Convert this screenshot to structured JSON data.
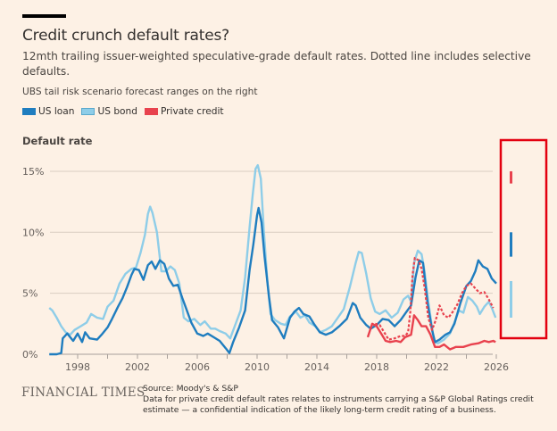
{
  "header": {
    "title": "Credit crunch default rates?",
    "subtitle": "12mth trailing issuer-weighted speculative-grade default rates. Dotted line includes selective defaults.",
    "note": "UBS tail risk scenario forecast ranges on the right"
  },
  "legend": [
    {
      "label": "US loan",
      "color": "#1f7dbf"
    },
    {
      "label": "US bond",
      "color": "#8ecde8"
    },
    {
      "label": "Private credit",
      "color": "#e8424e"
    }
  ],
  "footer": {
    "brand": "FINANCIAL TIMES",
    "source": "Source: Moody's & S&P",
    "footnote": "Data for private credit default rates relates to instruments carrying a S&P Global Ratings credit estimate — a confidential indication of the likely long-term credit rating of a business."
  },
  "chart_data": {
    "type": "line",
    "title": "Credit crunch default rates?",
    "ylabel": "Default rate",
    "xlabel": "",
    "ylim": [
      0,
      15
    ],
    "xlim": [
      1996,
      2027.5
    ],
    "yticks": [
      {
        "v": 0,
        "label": "0%"
      },
      {
        "v": 5,
        "label": "5%"
      },
      {
        "v": 10,
        "label": "10%"
      },
      {
        "v": 15,
        "label": "15%"
      }
    ],
    "xticks": [
      {
        "v": 1998,
        "label": "1998"
      },
      {
        "v": 2002,
        "label": "2002"
      },
      {
        "v": 2006,
        "label": "2006"
      },
      {
        "v": 2010,
        "label": "2010"
      },
      {
        "v": 2014,
        "label": "2014"
      },
      {
        "v": 2018,
        "label": "2018"
      },
      {
        "v": 2022,
        "label": "2022"
      },
      {
        "v": 2026,
        "label": "2026"
      }
    ],
    "minor_xticks": [
      2000,
      2004,
      2008,
      2012,
      2016,
      2020,
      2024
    ],
    "grid": true,
    "legend_position": "top-left",
    "highlight_box": {
      "label": "forecast ranges",
      "color": "#e3000f",
      "x_range": [
        2026.4,
        2027.5
      ]
    },
    "series": [
      {
        "name": "US bond",
        "color": "#8ecde8",
        "style": "solid",
        "points": [
          [
            1996.1,
            3.8
          ],
          [
            1996.3,
            3.6
          ],
          [
            1996.6,
            3.0
          ],
          [
            1996.9,
            2.3
          ],
          [
            1997.2,
            1.8
          ],
          [
            1997.5,
            1.6
          ],
          [
            1997.8,
            2.0
          ],
          [
            1998.2,
            2.3
          ],
          [
            1998.6,
            2.6
          ],
          [
            1998.9,
            3.3
          ],
          [
            1999.3,
            3.0
          ],
          [
            1999.7,
            2.9
          ],
          [
            2000.0,
            3.9
          ],
          [
            2000.4,
            4.4
          ],
          [
            2000.8,
            5.8
          ],
          [
            2001.2,
            6.6
          ],
          [
            2001.6,
            7.0
          ],
          [
            2001.9,
            7.1
          ],
          [
            2002.2,
            8.3
          ],
          [
            2002.5,
            9.8
          ],
          [
            2002.7,
            11.5
          ],
          [
            2002.85,
            12.1
          ],
          [
            2003.0,
            11.6
          ],
          [
            2003.3,
            10.0
          ],
          [
            2003.6,
            6.8
          ],
          [
            2003.9,
            6.8
          ],
          [
            2004.2,
            7.2
          ],
          [
            2004.5,
            6.9
          ],
          [
            2004.8,
            5.8
          ],
          [
            2005.1,
            3.0
          ],
          [
            2005.4,
            2.7
          ],
          [
            2005.8,
            2.9
          ],
          [
            2006.2,
            2.4
          ],
          [
            2006.5,
            2.7
          ],
          [
            2006.9,
            2.1
          ],
          [
            2007.2,
            2.1
          ],
          [
            2007.5,
            1.9
          ],
          [
            2007.9,
            1.7
          ],
          [
            2008.2,
            1.3
          ],
          [
            2008.6,
            2.6
          ],
          [
            2008.9,
            3.6
          ],
          [
            2009.2,
            6.3
          ],
          [
            2009.5,
            10.4
          ],
          [
            2009.7,
            13.0
          ],
          [
            2009.9,
            15.2
          ],
          [
            2010.05,
            15.5
          ],
          [
            2010.25,
            14.4
          ],
          [
            2010.45,
            10.2
          ],
          [
            2010.7,
            5.8
          ],
          [
            2010.9,
            3.3
          ],
          [
            2011.2,
            2.8
          ],
          [
            2011.6,
            2.5
          ],
          [
            2011.9,
            2.4
          ],
          [
            2012.2,
            3.1
          ],
          [
            2012.6,
            3.5
          ],
          [
            2012.9,
            3.0
          ],
          [
            2013.2,
            3.2
          ],
          [
            2013.5,
            2.6
          ],
          [
            2013.9,
            2.3
          ],
          [
            2014.2,
            1.8
          ],
          [
            2014.6,
            2.0
          ],
          [
            2015.0,
            2.3
          ],
          [
            2015.4,
            3.0
          ],
          [
            2015.8,
            3.7
          ],
          [
            2016.2,
            5.5
          ],
          [
            2016.6,
            7.5
          ],
          [
            2016.8,
            8.4
          ],
          [
            2017.0,
            8.3
          ],
          [
            2017.3,
            6.6
          ],
          [
            2017.6,
            4.6
          ],
          [
            2017.9,
            3.5
          ],
          [
            2018.2,
            3.3
          ],
          [
            2018.6,
            3.6
          ],
          [
            2019.0,
            3.0
          ],
          [
            2019.4,
            3.4
          ],
          [
            2019.8,
            4.5
          ],
          [
            2020.1,
            4.8
          ],
          [
            2020.3,
            4.3
          ],
          [
            2020.5,
            7.5
          ],
          [
            2020.75,
            8.5
          ],
          [
            2021.0,
            8.2
          ],
          [
            2021.2,
            6.8
          ],
          [
            2021.45,
            4.3
          ],
          [
            2021.7,
            2.2
          ],
          [
            2021.85,
            1.0
          ],
          [
            2022.1,
            0.9
          ],
          [
            2022.5,
            1.2
          ],
          [
            2022.9,
            1.7
          ],
          [
            2023.2,
            2.6
          ],
          [
            2023.5,
            3.6
          ],
          [
            2023.8,
            3.4
          ],
          [
            2024.1,
            4.7
          ],
          [
            2024.4,
            4.4
          ],
          [
            2024.7,
            3.9
          ],
          [
            2024.9,
            3.3
          ],
          [
            2025.2,
            3.9
          ],
          [
            2025.5,
            4.3
          ],
          [
            2025.7,
            3.8
          ],
          [
            2025.95,
            3.0
          ]
        ]
      },
      {
        "name": "US loan",
        "color": "#1f7dbf",
        "style": "solid",
        "points": [
          [
            1996.1,
            0.0
          ],
          [
            1996.6,
            0.0
          ],
          [
            1996.9,
            0.1
          ],
          [
            1997.0,
            1.3
          ],
          [
            1997.3,
            1.7
          ],
          [
            1997.7,
            1.1
          ],
          [
            1998.0,
            1.7
          ],
          [
            1998.3,
            1.0
          ],
          [
            1998.5,
            1.8
          ],
          [
            1998.8,
            1.3
          ],
          [
            1999.3,
            1.2
          ],
          [
            1999.6,
            1.6
          ],
          [
            2000.0,
            2.2
          ],
          [
            2000.3,
            2.9
          ],
          [
            2000.7,
            3.9
          ],
          [
            2001.0,
            4.6
          ],
          [
            2001.3,
            5.5
          ],
          [
            2001.6,
            6.5
          ],
          [
            2001.8,
            7.0
          ],
          [
            2002.1,
            6.9
          ],
          [
            2002.4,
            6.1
          ],
          [
            2002.7,
            7.3
          ],
          [
            2002.95,
            7.6
          ],
          [
            2003.2,
            7.0
          ],
          [
            2003.5,
            7.7
          ],
          [
            2003.8,
            7.4
          ],
          [
            2004.1,
            6.2
          ],
          [
            2004.4,
            5.6
          ],
          [
            2004.7,
            5.7
          ],
          [
            2005.0,
            4.6
          ],
          [
            2005.3,
            3.6
          ],
          [
            2005.6,
            2.6
          ],
          [
            2006.0,
            1.7
          ],
          [
            2006.4,
            1.5
          ],
          [
            2006.7,
            1.7
          ],
          [
            2007.1,
            1.4
          ],
          [
            2007.5,
            1.1
          ],
          [
            2007.9,
            0.5
          ],
          [
            2008.15,
            0.1
          ],
          [
            2008.4,
            1.0
          ],
          [
            2008.8,
            2.2
          ],
          [
            2009.2,
            3.6
          ],
          [
            2009.5,
            6.9
          ],
          [
            2009.75,
            9.0
          ],
          [
            2010.0,
            11.4
          ],
          [
            2010.1,
            12.0
          ],
          [
            2010.3,
            10.8
          ],
          [
            2010.5,
            8.0
          ],
          [
            2010.8,
            4.7
          ],
          [
            2011.0,
            2.8
          ],
          [
            2011.4,
            2.2
          ],
          [
            2011.8,
            1.3
          ],
          [
            2012.2,
            3.0
          ],
          [
            2012.5,
            3.5
          ],
          [
            2012.8,
            3.8
          ],
          [
            2013.1,
            3.3
          ],
          [
            2013.5,
            3.1
          ],
          [
            2013.8,
            2.5
          ],
          [
            2014.2,
            1.8
          ],
          [
            2014.6,
            1.6
          ],
          [
            2015.0,
            1.8
          ],
          [
            2015.5,
            2.3
          ],
          [
            2016.0,
            2.9
          ],
          [
            2016.4,
            4.2
          ],
          [
            2016.6,
            4.0
          ],
          [
            2016.9,
            3.0
          ],
          [
            2017.3,
            2.4
          ],
          [
            2017.6,
            2.1
          ],
          [
            2018.0,
            2.4
          ],
          [
            2018.4,
            2.9
          ],
          [
            2018.8,
            2.8
          ],
          [
            2019.2,
            2.3
          ],
          [
            2019.6,
            2.8
          ],
          [
            2020.0,
            3.5
          ],
          [
            2020.3,
            4.0
          ],
          [
            2020.6,
            6.3
          ],
          [
            2020.85,
            7.7
          ],
          [
            2021.1,
            7.5
          ],
          [
            2021.4,
            4.2
          ],
          [
            2021.7,
            2.0
          ],
          [
            2021.9,
            1.0
          ],
          [
            2022.2,
            1.2
          ],
          [
            2022.6,
            1.6
          ],
          [
            2022.9,
            1.8
          ],
          [
            2023.2,
            2.5
          ],
          [
            2023.6,
            4.2
          ],
          [
            2024.0,
            5.6
          ],
          [
            2024.3,
            6.0
          ],
          [
            2024.6,
            6.8
          ],
          [
            2024.8,
            7.7
          ],
          [
            2025.1,
            7.2
          ],
          [
            2025.4,
            7.0
          ],
          [
            2025.7,
            6.2
          ],
          [
            2026.0,
            5.8
          ]
        ]
      },
      {
        "name": "Private credit",
        "color": "#e8424e",
        "style": "solid",
        "points": [
          [
            2017.4,
            1.4
          ],
          [
            2017.7,
            2.5
          ],
          [
            2018.0,
            2.3
          ],
          [
            2018.3,
            1.7
          ],
          [
            2018.6,
            1.1
          ],
          [
            2018.9,
            1.0
          ],
          [
            2019.3,
            1.1
          ],
          [
            2019.6,
            1.0
          ],
          [
            2019.9,
            1.4
          ],
          [
            2020.3,
            1.6
          ],
          [
            2020.5,
            3.2
          ],
          [
            2020.75,
            2.8
          ],
          [
            2021.0,
            2.3
          ],
          [
            2021.3,
            2.3
          ],
          [
            2021.6,
            1.6
          ],
          [
            2021.9,
            0.6
          ],
          [
            2022.2,
            0.6
          ],
          [
            2022.5,
            0.8
          ],
          [
            2022.9,
            0.4
          ],
          [
            2023.3,
            0.6
          ],
          [
            2023.8,
            0.6
          ],
          [
            2024.3,
            0.8
          ],
          [
            2024.8,
            0.9
          ],
          [
            2025.2,
            1.1
          ],
          [
            2025.5,
            1.0
          ],
          [
            2025.8,
            1.1
          ],
          [
            2025.95,
            1.0
          ]
        ]
      },
      {
        "name": "Private credit (incl. selective defaults)",
        "color": "#e8424e",
        "style": "dotted",
        "points": [
          [
            2017.9,
            2.5
          ],
          [
            2018.2,
            2.4
          ],
          [
            2018.5,
            1.8
          ],
          [
            2018.8,
            1.2
          ],
          [
            2019.2,
            1.3
          ],
          [
            2019.6,
            1.5
          ],
          [
            2019.9,
            1.5
          ],
          [
            2020.1,
            1.8
          ],
          [
            2020.25,
            3.5
          ],
          [
            2020.4,
            6.5
          ],
          [
            2020.55,
            7.9
          ],
          [
            2020.8,
            7.7
          ],
          [
            2021.0,
            7.0
          ],
          [
            2021.2,
            5.5
          ],
          [
            2021.45,
            3.0
          ],
          [
            2021.7,
            2.0
          ],
          [
            2021.95,
            2.8
          ],
          [
            2022.2,
            4.0
          ],
          [
            2022.5,
            3.2
          ],
          [
            2022.8,
            3.0
          ],
          [
            2023.1,
            3.5
          ],
          [
            2023.4,
            4.1
          ],
          [
            2023.7,
            5.0
          ],
          [
            2024.0,
            5.6
          ],
          [
            2024.3,
            5.8
          ],
          [
            2024.6,
            5.4
          ],
          [
            2024.9,
            5.0
          ],
          [
            2025.2,
            5.1
          ],
          [
            2025.5,
            4.5
          ],
          [
            2025.8,
            3.8
          ]
        ]
      }
    ],
    "forecast_ranges": [
      {
        "name": "Private credit",
        "color": "#e8424e",
        "low": 14.0,
        "high": 15.0
      },
      {
        "name": "US loan",
        "color": "#1f7dbf",
        "low": 8.0,
        "high": 10.0
      },
      {
        "name": "US bond",
        "color": "#8ecde8",
        "low": 3.0,
        "high": 6.0
      }
    ]
  }
}
